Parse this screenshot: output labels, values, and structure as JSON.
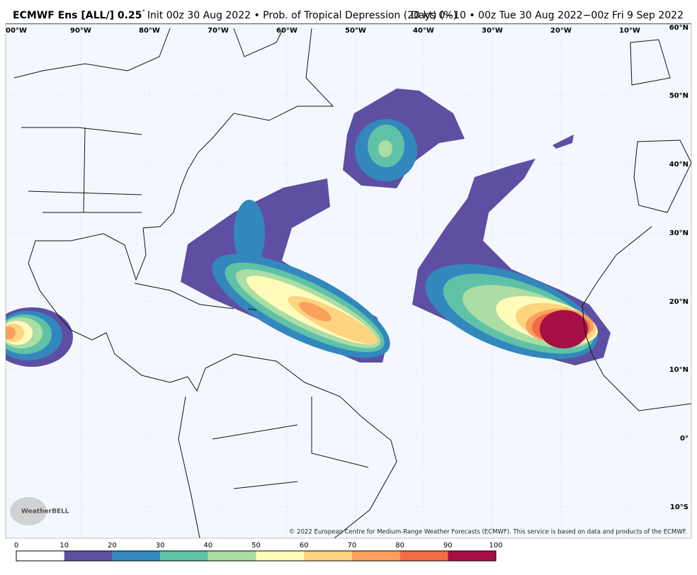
{
  "header": {
    "title": "ECMWF Ens [ALL/] 0.25",
    "degree": "°",
    "init": "Init 00z 30 Aug 2022 • Prob. of Tropical Depression (20 kt) (%)",
    "days": "Days 0−10 • 00z Tue 30 Aug 2022−00z Fri 9 Sep 2022"
  },
  "map": {
    "lon_labels": [
      "00°W",
      "90°W",
      "80°W",
      "70°W",
      "60°W",
      "50°W",
      "40°W",
      "30°W",
      "20°W",
      "10°W"
    ],
    "lat_labels": [
      "60°N",
      "50°N",
      "40°N",
      "30°N",
      "20°N",
      "10°N",
      "0°",
      "10°S"
    ]
  },
  "logo": "WeatherBELL",
  "copyright": "© 2022 European Centre for Medium-Range Weather Forecasts (ECMWF). This service is based on data and products of the ECMWF.",
  "colorbar": {
    "ticks": [
      0,
      10,
      20,
      30,
      40,
      50,
      60,
      70,
      80,
      90,
      100
    ],
    "colors": [
      "#ffffff",
      "#5e4fa2",
      "#3288bd",
      "#5fc2a6",
      "#abdda4",
      "#fffcbb",
      "#fdd480",
      "#fca05d",
      "#f26c45",
      "#a50f46"
    ]
  }
}
